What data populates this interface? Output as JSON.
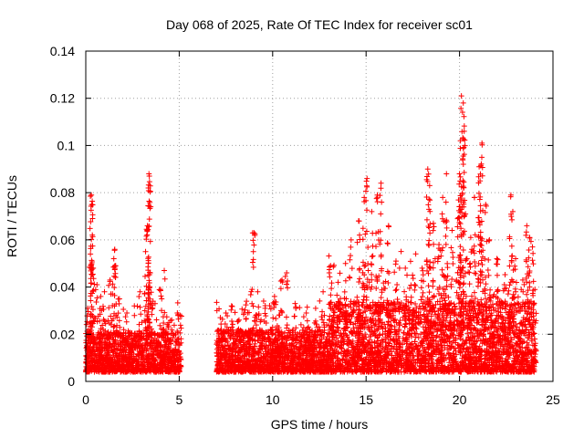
{
  "chart_data": {
    "type": "scatter",
    "title": "Day 068 of 2025, Rate Of TEC Index for receiver sc01",
    "xlabel": "GPS time / hours",
    "ylabel": "ROTI / TECUs",
    "xlim": [
      0,
      25
    ],
    "ylim": [
      0,
      0.14
    ],
    "x_ticks": [
      0,
      5,
      10,
      15,
      20,
      25
    ],
    "x_tick_labels": [
      "0",
      "5",
      "10",
      "15",
      "20",
      "25"
    ],
    "y_ticks": [
      0,
      0.02,
      0.04,
      0.06,
      0.08,
      0.1,
      0.12,
      0.14
    ],
    "y_tick_labels": [
      "0",
      "0.02",
      "0.04",
      "0.06",
      "0.08",
      "0.1",
      "0.12",
      "0.14"
    ],
    "grid": true,
    "marker": "+",
    "color": "#ff0000",
    "series": [
      {
        "name": "ROTI",
        "points": [
          [
            0.1,
            0.031
          ],
          [
            0.15,
            0.022
          ],
          [
            0.25,
            0.054
          ],
          [
            0.3,
            0.079
          ],
          [
            0.32,
            0.075
          ],
          [
            0.35,
            0.062
          ],
          [
            0.4,
            0.048
          ],
          [
            0.6,
            0.041
          ],
          [
            0.8,
            0.036
          ],
          [
            1.0,
            0.038
          ],
          [
            1.3,
            0.043
          ],
          [
            1.5,
            0.052
          ],
          [
            1.55,
            0.056
          ],
          [
            1.6,
            0.049
          ],
          [
            1.8,
            0.035
          ],
          [
            2.2,
            0.029
          ],
          [
            2.6,
            0.032
          ],
          [
            2.9,
            0.038
          ],
          [
            3.2,
            0.055
          ],
          [
            3.3,
            0.066
          ],
          [
            3.35,
            0.082
          ],
          [
            3.38,
            0.088
          ],
          [
            3.4,
            0.087
          ],
          [
            3.45,
            0.046
          ],
          [
            3.6,
            0.034
          ],
          [
            4.0,
            0.039
          ],
          [
            4.2,
            0.047
          ],
          [
            4.6,
            0.026
          ],
          [
            4.9,
            0.029
          ],
          [
            5.05,
            0.028
          ],
          [
            7.2,
            0.027
          ],
          [
            7.5,
            0.029
          ],
          [
            7.8,
            0.032
          ],
          [
            8.2,
            0.026
          ],
          [
            8.6,
            0.034
          ],
          [
            8.9,
            0.039
          ],
          [
            9.0,
            0.063
          ],
          [
            9.2,
            0.038
          ],
          [
            9.6,
            0.031
          ],
          [
            10.1,
            0.036
          ],
          [
            10.5,
            0.043
          ],
          [
            10.75,
            0.046
          ],
          [
            11.2,
            0.033
          ],
          [
            11.8,
            0.029
          ],
          [
            12.3,
            0.031
          ],
          [
            12.7,
            0.038
          ],
          [
            13.1,
            0.049
          ],
          [
            13.5,
            0.042
          ],
          [
            13.9,
            0.05
          ],
          [
            14.2,
            0.06
          ],
          [
            14.6,
            0.068
          ],
          [
            14.9,
            0.078
          ],
          [
            15.05,
            0.086
          ],
          [
            15.3,
            0.072
          ],
          [
            15.6,
            0.079
          ],
          [
            15.8,
            0.084
          ],
          [
            16.2,
            0.066
          ],
          [
            16.6,
            0.051
          ],
          [
            17.1,
            0.048
          ],
          [
            17.6,
            0.041
          ],
          [
            18.0,
            0.048
          ],
          [
            18.3,
            0.09
          ],
          [
            18.4,
            0.083
          ],
          [
            18.6,
            0.067
          ],
          [
            18.9,
            0.058
          ],
          [
            19.1,
            0.078
          ],
          [
            19.3,
            0.088
          ],
          [
            19.6,
            0.064
          ],
          [
            19.9,
            0.069
          ],
          [
            20.0,
            0.088
          ],
          [
            20.05,
            0.102
          ],
          [
            20.1,
            0.121
          ],
          [
            20.2,
            0.118
          ],
          [
            20.25,
            0.106
          ],
          [
            20.4,
            0.052
          ],
          [
            20.6,
            0.061
          ],
          [
            20.8,
            0.078
          ],
          [
            21.05,
            0.091
          ],
          [
            21.1,
            0.085
          ],
          [
            21.2,
            0.101
          ],
          [
            21.4,
            0.075
          ],
          [
            21.6,
            0.06
          ],
          [
            22.0,
            0.052
          ],
          [
            22.4,
            0.041
          ],
          [
            22.75,
            0.079
          ],
          [
            22.85,
            0.072
          ],
          [
            23.0,
            0.052
          ],
          [
            23.4,
            0.038
          ],
          [
            23.6,
            0.066
          ],
          [
            23.75,
            0.061
          ],
          [
            23.9,
            0.057
          ],
          [
            24.0,
            0.033
          ]
        ]
      }
    ],
    "bands": [
      {
        "start": 0.0,
        "end": 5.1,
        "base_low": 0.004,
        "base_high": 0.021
      },
      {
        "start": 7.0,
        "end": 13.0,
        "base_low": 0.004,
        "base_high": 0.022
      },
      {
        "start": 13.0,
        "end": 24.1,
        "base_low": 0.004,
        "base_high": 0.034
      }
    ]
  }
}
